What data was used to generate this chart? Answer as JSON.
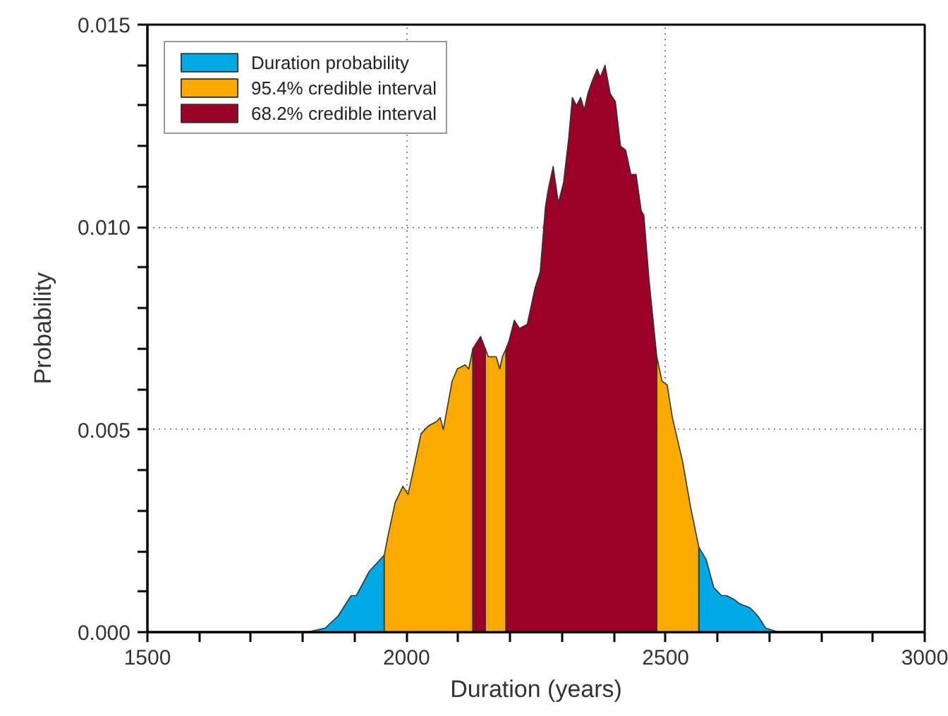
{
  "chart_data": {
    "type": "area",
    "xlabel": "Duration (years)",
    "ylabel": "Probability",
    "xlim": [
      1500,
      3000
    ],
    "ylim": [
      0,
      0.015
    ],
    "xticks": [
      1500,
      {
        "value": 1600,
        "label": null
      },
      {
        "value": 1700,
        "label": null
      },
      {
        "value": 1800,
        "label": null
      },
      {
        "value": 1900,
        "label": null
      },
      2000,
      {
        "value": 2100,
        "label": null
      },
      {
        "value": 2200,
        "label": null
      },
      {
        "value": 2300,
        "label": null
      },
      {
        "value": 2400,
        "label": null
      },
      2500,
      {
        "value": 2600,
        "label": null
      },
      {
        "value": 2700,
        "label": null
      },
      {
        "value": 2800,
        "label": null
      },
      {
        "value": 2900,
        "label": null
      },
      3000
    ],
    "yticks": [
      {
        "value": 0,
        "label": "0.000"
      },
      {
        "value": 0.001,
        "label": null
      },
      {
        "value": 0.002,
        "label": null
      },
      {
        "value": 0.003,
        "label": null
      },
      {
        "value": 0.004,
        "label": null
      },
      {
        "value": 0.005,
        "label": "0.005"
      },
      {
        "value": 0.006,
        "label": null
      },
      {
        "value": 0.007,
        "label": null
      },
      {
        "value": 0.008,
        "label": null
      },
      {
        "value": 0.009,
        "label": null
      },
      {
        "value": 0.01,
        "label": "0.010"
      },
      {
        "value": 0.011,
        "label": null
      },
      {
        "value": 0.012,
        "label": null
      },
      {
        "value": 0.013,
        "label": null
      },
      {
        "value": 0.014,
        "label": null
      },
      {
        "value": 0.015,
        "label": "0.015"
      }
    ],
    "grid": true,
    "legend": "top left",
    "series": [
      {
        "name": "Duration probability",
        "color": "#00a8e4",
        "x": [
          1808,
          1843,
          1868,
          1893,
          1903,
          1928,
          1957,
          null,
          2564,
          2578,
          2593,
          2608,
          2618,
          2633,
          2643,
          2663,
          2678,
          2693,
          2718
        ],
        "values": [
          0.0,
          0.0001,
          0.0004,
          0.0009,
          0.0009,
          0.0015,
          0.0019,
          null,
          0.0021,
          0.0018,
          0.0011,
          0.0009,
          0.0009,
          0.0008,
          0.0007,
          0.0006,
          0.0004,
          0.0001,
          0.0
        ]
      },
      {
        "name": "95.4% credible interval",
        "color": "#fbab00",
        "x": [
          1957,
          1963,
          1978,
          1993,
          2003,
          2028,
          2043,
          2058,
          2065,
          2071,
          2088,
          2098,
          2113,
          2120,
          2128,
          null,
          2152,
          2158,
          2173,
          2180,
          2185,
          2192,
          null,
          2483,
          2493,
          2503,
          2513,
          2533,
          2548,
          2564
        ],
        "values": [
          0.0019,
          0.0023,
          0.0032,
          0.0036,
          0.0034,
          0.0049,
          0.0051,
          0.0052,
          0.0053,
          0.005,
          0.0062,
          0.0065,
          0.0066,
          0.0065,
          0.007,
          null,
          0.007,
          0.0068,
          0.0068,
          0.0065,
          0.0068,
          0.007,
          null,
          0.0068,
          0.0062,
          0.0061,
          0.0053,
          0.0042,
          0.0031,
          0.0021
        ]
      },
      {
        "name": "68.2% credible interval",
        "color": "#9b0027",
        "x": [
          2128,
          2133,
          2143,
          2152,
          null,
          2192,
          2198,
          2208,
          2218,
          2233,
          2248,
          2258,
          2268,
          2273,
          2283,
          2293,
          2303,
          2313,
          2320,
          2328,
          2336,
          2343,
          2350,
          2358,
          2368,
          2374,
          2383,
          2393,
          2403,
          2413,
          2423,
          2433,
          2443,
          2453,
          2458,
          2468,
          2483
        ],
        "values": [
          0.007,
          0.0071,
          0.0073,
          0.007,
          null,
          0.007,
          0.0072,
          0.0077,
          0.0075,
          0.0076,
          0.0085,
          0.0089,
          0.0105,
          0.0109,
          0.0115,
          0.0106,
          0.0111,
          0.0122,
          0.0132,
          0.013,
          0.0132,
          0.0129,
          0.0133,
          0.0136,
          0.0139,
          0.0137,
          0.014,
          0.0133,
          0.0131,
          0.012,
          0.0119,
          0.0113,
          0.0113,
          0.0104,
          0.0103,
          0.0087,
          0.0068
        ]
      }
    ]
  }
}
